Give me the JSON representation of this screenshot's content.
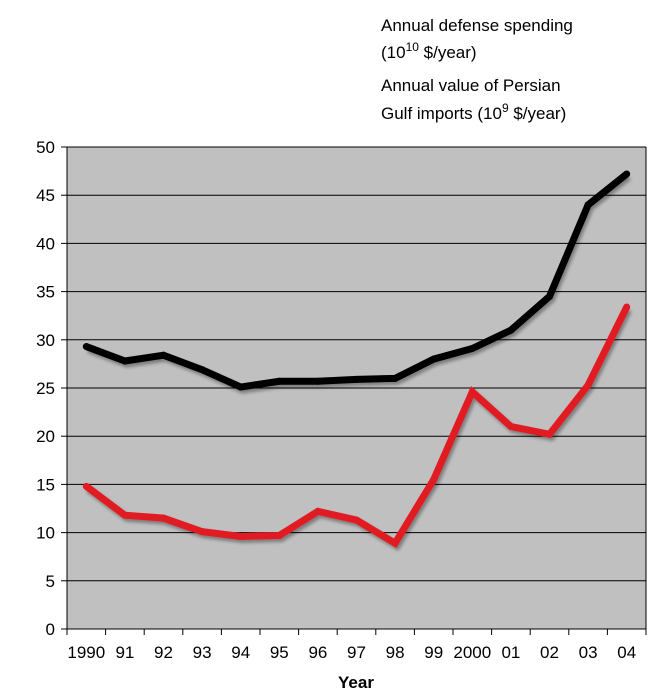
{
  "chart_data": {
    "type": "line",
    "title": "",
    "xlabel": "Year",
    "ylabel": "",
    "ylim": [
      0,
      50
    ],
    "yticks": [
      0,
      5,
      10,
      15,
      20,
      25,
      30,
      35,
      40,
      45,
      50
    ],
    "x_tick_labels": [
      "1990",
      "91",
      "92",
      "93",
      "94",
      "95",
      "96",
      "97",
      "98",
      "99",
      "2000",
      "01",
      "02",
      "03",
      "04"
    ],
    "categories": [
      "1990",
      "91",
      "92",
      "93",
      "94",
      "95",
      "96",
      "97",
      "98",
      "99",
      "2000",
      "01",
      "02",
      "03",
      "04"
    ],
    "grid": true,
    "plot_background": "#c0c0c0",
    "legend_position": "top-right",
    "series": [
      {
        "name": "Annual defense spending",
        "legend_line1": "Annual defense spending",
        "legend_line2_prefix": "(10",
        "legend_line2_sup": "10",
        "legend_line2_suffix": " $/year)",
        "color": "#000000",
        "values": [
          29.3,
          27.8,
          28.4,
          26.9,
          25.1,
          25.7,
          25.7,
          25.9,
          26.0,
          28.0,
          29.1,
          31.0,
          34.5,
          44.0,
          47.2
        ]
      },
      {
        "name": "Annual value of Persian Gulf imports",
        "legend_line1": "Annual value of Persian",
        "legend_line2_prefix": "Gulf imports (10",
        "legend_line2_sup": "9",
        "legend_line2_suffix": " $/year)",
        "color": "#e01b24",
        "values": [
          14.8,
          11.8,
          11.5,
          10.1,
          9.6,
          9.7,
          12.2,
          11.3,
          8.9,
          15.5,
          24.6,
          21.0,
          20.2,
          25.3,
          33.4
        ]
      }
    ]
  }
}
